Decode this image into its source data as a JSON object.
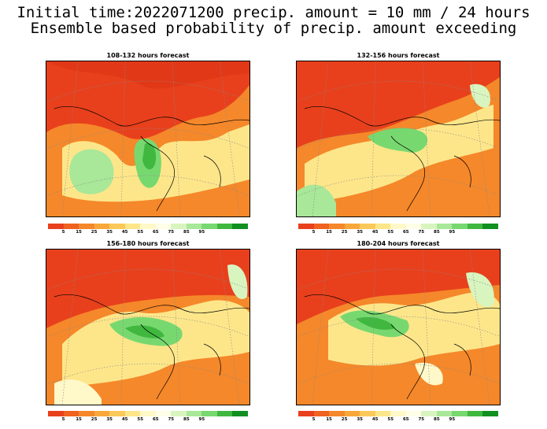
{
  "header": {
    "line1": "Initial time:2022071200 precip. amount = 10 mm / 24 hours",
    "line2": "Ensemble based probability of precip. amount exceeding"
  },
  "panels": [
    {
      "title": "108-132 hours forecast"
    },
    {
      "title": "132-156 hours forecast"
    },
    {
      "title": "156-180 hours forecast"
    },
    {
      "title": "180-204 hours forecast"
    }
  ],
  "colorbar": {
    "colors": [
      "#e8401c",
      "#f06220",
      "#f5882a",
      "#f8a83a",
      "#fbc85a",
      "#fde68a",
      "#fff8c8",
      "#ffffe8",
      "#d8f5c0",
      "#a8e898",
      "#78d870",
      "#40b840",
      "#109020"
    ],
    "labels": [
      "5",
      "15",
      "25",
      "35",
      "45",
      "55",
      "65",
      "75",
      "85",
      "95"
    ]
  }
}
